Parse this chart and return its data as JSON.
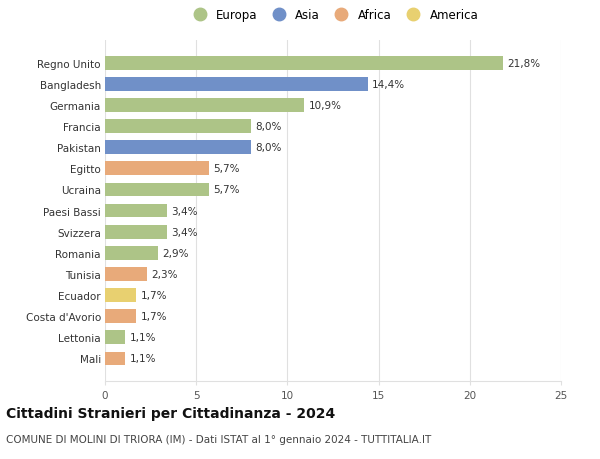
{
  "categories": [
    "Mali",
    "Lettonia",
    "Costa d'Avorio",
    "Ecuador",
    "Tunisia",
    "Romania",
    "Svizzera",
    "Paesi Bassi",
    "Ucraina",
    "Egitto",
    "Pakistan",
    "Francia",
    "Germania",
    "Bangladesh",
    "Regno Unito"
  ],
  "values": [
    1.1,
    1.1,
    1.7,
    1.7,
    2.3,
    2.9,
    3.4,
    3.4,
    5.7,
    5.7,
    8.0,
    8.0,
    10.9,
    14.4,
    21.8
  ],
  "labels": [
    "1,1%",
    "1,1%",
    "1,7%",
    "1,7%",
    "2,3%",
    "2,9%",
    "3,4%",
    "3,4%",
    "5,7%",
    "5,7%",
    "8,0%",
    "8,0%",
    "10,9%",
    "14,4%",
    "21,8%"
  ],
  "continents": [
    "Africa",
    "Europa",
    "Africa",
    "America",
    "Africa",
    "Europa",
    "Europa",
    "Europa",
    "Europa",
    "Africa",
    "Asia",
    "Europa",
    "Europa",
    "Asia",
    "Europa"
  ],
  "continent_colors": {
    "Europa": "#adc487",
    "Asia": "#7090c8",
    "Africa": "#e8aa7a",
    "America": "#e8d070"
  },
  "legend_order": [
    "Europa",
    "Asia",
    "Africa",
    "America"
  ],
  "title": "Cittadini Stranieri per Cittadinanza - 2024",
  "subtitle": "COMUNE DI MOLINI DI TRIORA (IM) - Dati ISTAT al 1° gennaio 2024 - TUTTITALIA.IT",
  "xlim": [
    0,
    25
  ],
  "xticks": [
    0,
    5,
    10,
    15,
    20,
    25
  ],
  "background_color": "#ffffff",
  "grid_color": "#e0e0e0",
  "bar_height": 0.65,
  "title_fontsize": 10,
  "subtitle_fontsize": 7.5,
  "label_fontsize": 7.5,
  "tick_fontsize": 7.5,
  "legend_fontsize": 8.5
}
